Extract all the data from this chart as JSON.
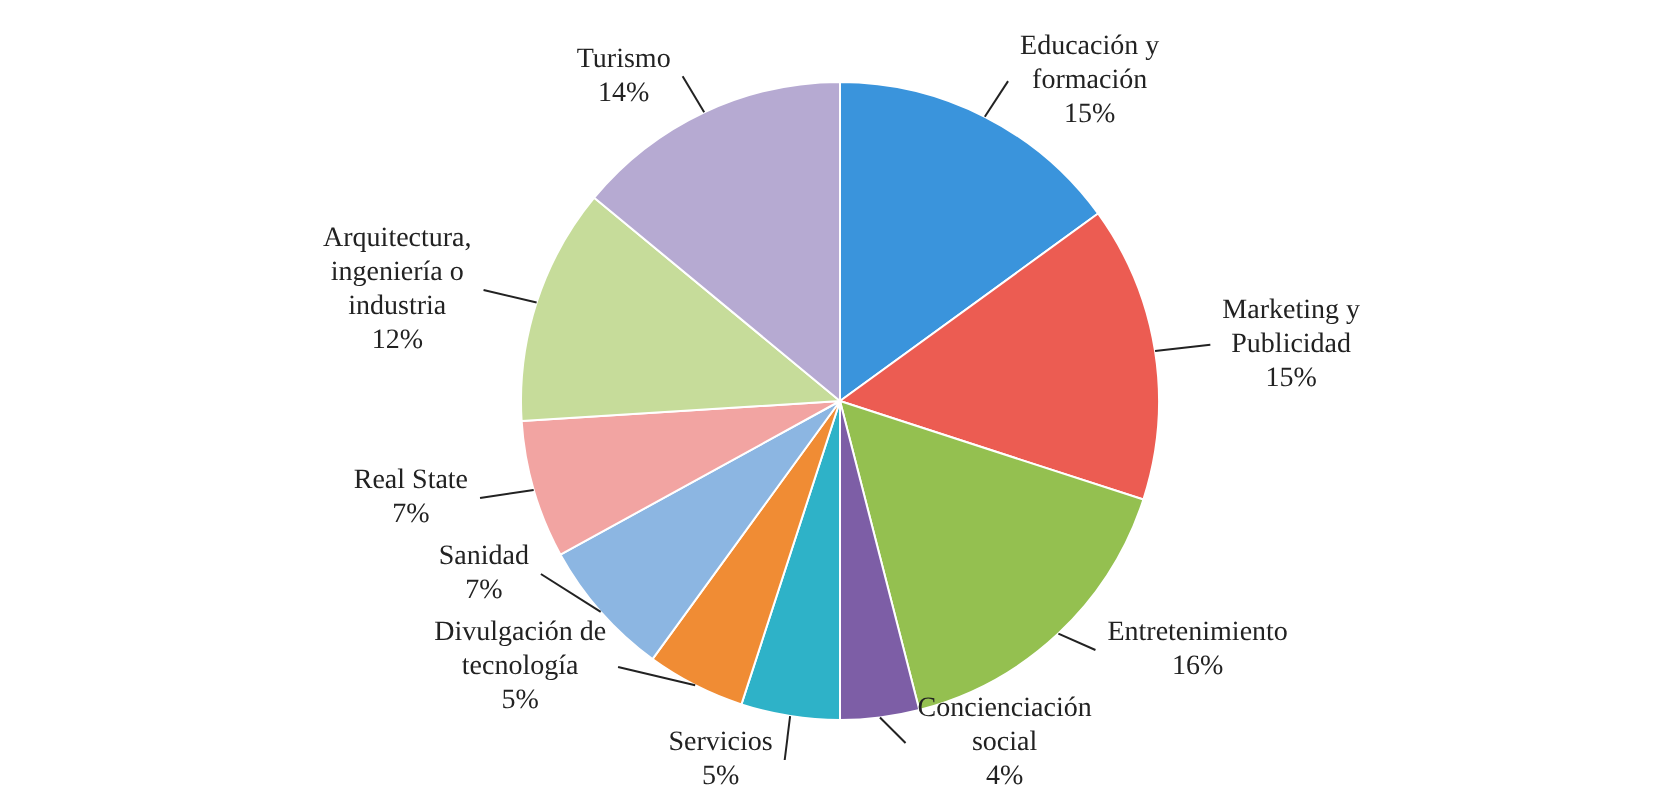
{
  "chart_data": {
    "type": "pie",
    "categories": [
      "Educación y formación",
      "Marketing y Publicidad",
      "Entretenimiento",
      "Concienciación social",
      "Servicios",
      "Divulgación de tecnología",
      "Sanidad",
      "Real State",
      "Arquitectura, ingeniería o industria",
      "Turismo"
    ],
    "values": [
      15,
      15,
      16,
      4,
      5,
      5,
      7,
      7,
      12,
      14
    ],
    "value_labels": [
      "15%",
      "15%",
      "16%",
      "4%",
      "5%",
      "5%",
      "7%",
      "7%",
      "12%",
      "14%"
    ],
    "colors": [
      "#3a94dc",
      "#ec5c52",
      "#94c050",
      "#7d5ea6",
      "#2eb2c8",
      "#f08c34",
      "#8cb6e2",
      "#f2a4a2",
      "#c6dc9a",
      "#b6aad2"
    ]
  }
}
